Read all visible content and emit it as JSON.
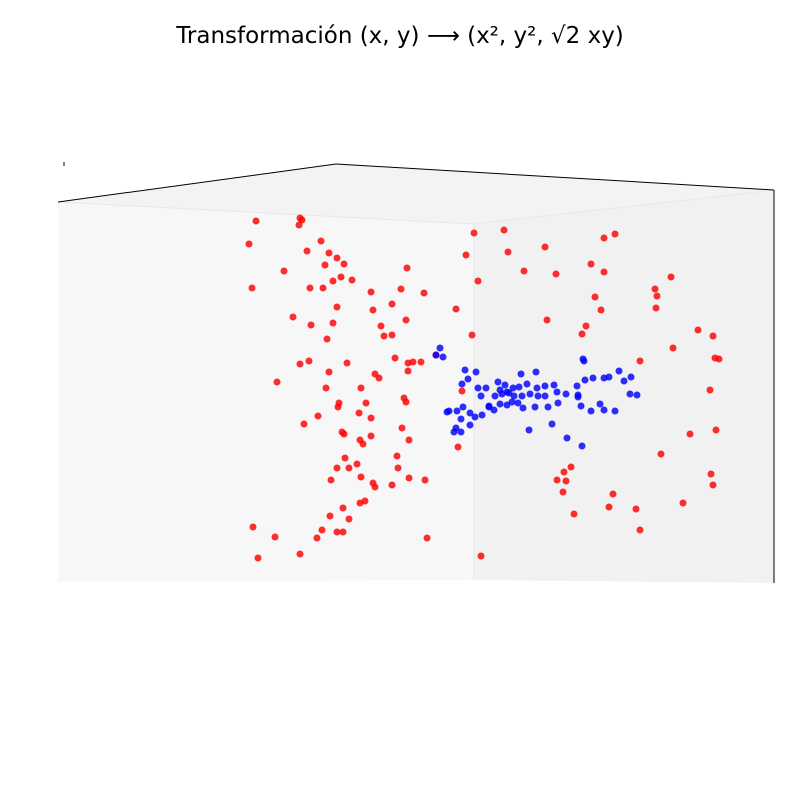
{
  "figure": {
    "title": "Transformación (x, y) ⟶ (x², y², √2 xy)",
    "title_parts": {
      "prefix": "Transformación ",
      "math": "(x, y) ⟶ (x², y², √2 xy)"
    }
  },
  "chart_data": {
    "type": "scatter",
    "title": "Transformación (x, y) ⟶ (x², y², √2 xy)",
    "xlabel": "",
    "ylabel": "",
    "zlabel": "",
    "grid": false,
    "legend": "none",
    "projection": "3d",
    "series": [
      {
        "color": "#ff0000",
        "points": [
          [
            256,
            221
          ],
          [
            300,
            218
          ],
          [
            302,
            220
          ],
          [
            299,
            225
          ],
          [
            249,
            244
          ],
          [
            307,
            251
          ],
          [
            321,
            241
          ],
          [
            329,
            253
          ],
          [
            337,
            258
          ],
          [
            344,
            264
          ],
          [
            325,
            265
          ],
          [
            284,
            271
          ],
          [
            341,
            277
          ],
          [
            352,
            280
          ],
          [
            333,
            281
          ],
          [
            310,
            288
          ],
          [
            252,
            288
          ],
          [
            323,
            288
          ],
          [
            407,
            268
          ],
          [
            401,
            289
          ],
          [
            424,
            293
          ],
          [
            371,
            292
          ],
          [
            337,
            307
          ],
          [
            373,
            310
          ],
          [
            392,
            304
          ],
          [
            293,
            317
          ],
          [
            311,
            325
          ],
          [
            333,
            323
          ],
          [
            381,
            326
          ],
          [
            406,
            320
          ],
          [
            384,
            336
          ],
          [
            392,
            335
          ],
          [
            327,
            339
          ],
          [
            456,
            309
          ],
          [
            472,
            335
          ],
          [
            436,
            355
          ],
          [
            395,
            358
          ],
          [
            413,
            362
          ],
          [
            421,
            362
          ],
          [
            408,
            363
          ],
          [
            408,
            371
          ],
          [
            309,
            361
          ],
          [
            300,
            364
          ],
          [
            347,
            363
          ],
          [
            329,
            372
          ],
          [
            375,
            374
          ],
          [
            379,
            378
          ],
          [
            277,
            382
          ],
          [
            326,
            388
          ],
          [
            361,
            388
          ],
          [
            404,
            398
          ],
          [
            406,
            402
          ],
          [
            339,
            403
          ],
          [
            338,
            407
          ],
          [
            366,
            403
          ],
          [
            359,
            413
          ],
          [
            318,
            416
          ],
          [
            304,
            424
          ],
          [
            371,
            418
          ],
          [
            342,
            432
          ],
          [
            344,
            434
          ],
          [
            360,
            440
          ],
          [
            363,
            444
          ],
          [
            402,
            428
          ],
          [
            371,
            436
          ],
          [
            409,
            440
          ],
          [
            345,
            458
          ],
          [
            357,
            464
          ],
          [
            349,
            468
          ],
          [
            337,
            468
          ],
          [
            397,
            456
          ],
          [
            398,
            468
          ],
          [
            331,
            480
          ],
          [
            361,
            477
          ],
          [
            375,
            487
          ],
          [
            373,
            483
          ],
          [
            392,
            485
          ],
          [
            409,
            478
          ],
          [
            425,
            480
          ],
          [
            462,
            391
          ],
          [
            458,
            447
          ],
          [
            474,
            233
          ],
          [
            504,
            230
          ],
          [
            466,
            255
          ],
          [
            508,
            252
          ],
          [
            545,
            247
          ],
          [
            604,
            238
          ],
          [
            615,
            234
          ],
          [
            478,
            281
          ],
          [
            524,
            271
          ],
          [
            556,
            274
          ],
          [
            591,
            264
          ],
          [
            604,
            272
          ],
          [
            595,
            297
          ],
          [
            601,
            310
          ],
          [
            655,
            289
          ],
          [
            657,
            296
          ],
          [
            671,
            277
          ],
          [
            656,
            308
          ],
          [
            547,
            320
          ],
          [
            586,
            326
          ],
          [
            582,
            334
          ],
          [
            640,
            361
          ],
          [
            673,
            348
          ],
          [
            698,
            330
          ],
          [
            713,
            336
          ],
          [
            715,
            358
          ],
          [
            719,
            359
          ],
          [
            710,
            390
          ],
          [
            716,
            430
          ],
          [
            690,
            434
          ],
          [
            661,
            454
          ],
          [
            711,
            474
          ],
          [
            713,
            485
          ],
          [
            571,
            467
          ],
          [
            564,
            472
          ],
          [
            557,
            480
          ],
          [
            566,
            481
          ],
          [
            563,
            492
          ],
          [
            613,
            494
          ],
          [
            609,
            507
          ],
          [
            574,
            514
          ],
          [
            636,
            509
          ],
          [
            683,
            503
          ],
          [
            640,
            530
          ],
          [
            365,
            501
          ],
          [
            360,
            503
          ],
          [
            343,
            508
          ],
          [
            349,
            519
          ],
          [
            330,
            516
          ],
          [
            337,
            532
          ],
          [
            343,
            532
          ],
          [
            322,
            530
          ],
          [
            317,
            538
          ],
          [
            253,
            527
          ],
          [
            275,
            537
          ],
          [
            300,
            554
          ],
          [
            258,
            558
          ],
          [
            427,
            538
          ],
          [
            481,
            556
          ]
        ]
      },
      {
        "color": "#0000ff",
        "points": [
          [
            440,
            348
          ],
          [
            436,
            355
          ],
          [
            443,
            357
          ],
          [
            465,
            370
          ],
          [
            476,
            372
          ],
          [
            468,
            379
          ],
          [
            462,
            384
          ],
          [
            478,
            388
          ],
          [
            486,
            388
          ],
          [
            481,
            396
          ],
          [
            498,
            382
          ],
          [
            505,
            385
          ],
          [
            500,
            390
          ],
          [
            507,
            392
          ],
          [
            513,
            388
          ],
          [
            519,
            387
          ],
          [
            521,
            374
          ],
          [
            536,
            372
          ],
          [
            527,
            384
          ],
          [
            537,
            388
          ],
          [
            545,
            386
          ],
          [
            554,
            385
          ],
          [
            557,
            392
          ],
          [
            545,
            396
          ],
          [
            538,
            396
          ],
          [
            530,
            394
          ],
          [
            522,
            396
          ],
          [
            514,
            396
          ],
          [
            509,
            393
          ],
          [
            502,
            394
          ],
          [
            495,
            396
          ],
          [
            489,
            406
          ],
          [
            494,
            410
          ],
          [
            500,
            404
          ],
          [
            507,
            405
          ],
          [
            512,
            402
          ],
          [
            518,
            403
          ],
          [
            523,
            408
          ],
          [
            535,
            407
          ],
          [
            548,
            407
          ],
          [
            558,
            403
          ],
          [
            577,
            386
          ],
          [
            578,
            397
          ],
          [
            585,
            380
          ],
          [
            593,
            378
          ],
          [
            604,
            378
          ],
          [
            609,
            377
          ],
          [
            619,
            371
          ],
          [
            624,
            381
          ],
          [
            631,
            377
          ],
          [
            583,
            359
          ],
          [
            584,
            361
          ],
          [
            630,
            394
          ],
          [
            637,
            395
          ],
          [
            578,
            395
          ],
          [
            581,
            406
          ],
          [
            591,
            411
          ],
          [
            600,
            404
          ],
          [
            604,
            410
          ],
          [
            615,
            411
          ],
          [
            566,
            394
          ],
          [
            552,
            424
          ],
          [
            567,
            438
          ],
          [
            582,
            446
          ],
          [
            529,
            430
          ],
          [
            447,
            412
          ],
          [
            449,
            411
          ],
          [
            457,
            411
          ],
          [
            470,
            413
          ],
          [
            461,
            419
          ],
          [
            470,
            425
          ],
          [
            475,
            417
          ],
          [
            482,
            415
          ],
          [
            489,
            407
          ],
          [
            456,
            428
          ],
          [
            454,
            432
          ],
          [
            461,
            432
          ],
          [
            463,
            407
          ]
        ]
      }
    ]
  }
}
